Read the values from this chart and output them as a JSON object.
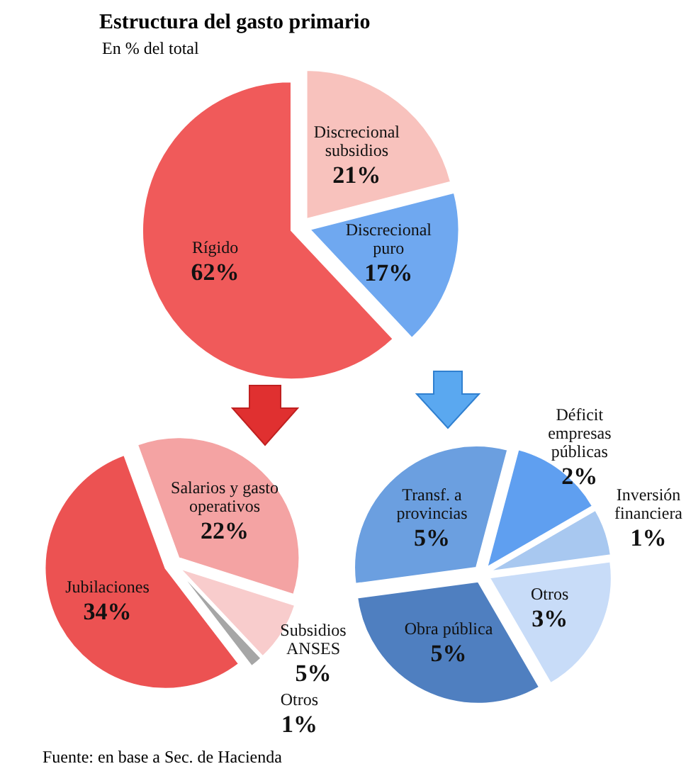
{
  "chart_data": [
    {
      "type": "pie",
      "title": "Estructura del gasto primario",
      "subtitle": "En % del total",
      "annotations": [
        "Fuente: en base a Sec. de Hacienda"
      ],
      "categories": [
        "Discrecional subsidios",
        "Discrecional puro",
        "Rígido"
      ],
      "values": [
        21,
        17,
        62
      ],
      "colors": [
        "#f8c2bd",
        "#6fa8f0",
        "#f05a5a"
      ],
      "value_labels": [
        "21%",
        "17%",
        "62%"
      ]
    },
    {
      "type": "pie",
      "categories": [
        "Salarios y gasto operativos",
        "Subsidios ANSES",
        "Otros",
        "Jubilaciones"
      ],
      "values": [
        22,
        5,
        1,
        34
      ],
      "colors": [
        "#f4a3a3",
        "#f8cccc",
        "#a6a6a6",
        "#ec5252"
      ],
      "value_labels": [
        "22%",
        "5%",
        "1%",
        "34%"
      ]
    },
    {
      "type": "pie",
      "categories": [
        "Déficit empresas públicas",
        "Inversión financiera",
        "Otros",
        "Obra pública",
        "Transf. a provincias"
      ],
      "values": [
        2,
        1,
        3,
        5,
        5
      ],
      "colors": [
        "#5f9ff0",
        "#a8c8f0",
        "#c8dcf8",
        "#4f7fc0",
        "#6b9fe0"
      ],
      "value_labels": [
        "2%",
        "1%",
        "3%",
        "5%",
        "5%"
      ]
    }
  ]
}
